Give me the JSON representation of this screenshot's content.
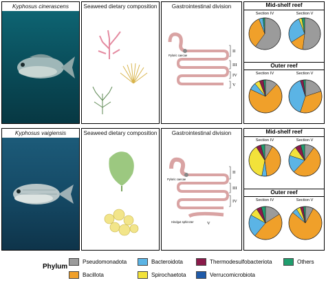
{
  "rows": [
    {
      "species": "Kyphosus cinerascens",
      "seaweed_title": "Seaweed dietary composition",
      "gi_title": "Gastrointestinal division",
      "gi_labels": [
        "Pyloric caecae"
      ],
      "sections": [
        "II",
        "III",
        "IV",
        "V"
      ],
      "reef_top": "Mid-shelf reef",
      "reef_bottom": "Outer reef",
      "pies": [
        {
          "label": "Section IV",
          "slices": [
            {
              "phylum": "Pseudomonadota",
              "value": 60
            },
            {
              "phylum": "Bacillota",
              "value": 34
            },
            {
              "phylum": "Bacteroidota",
              "value": 4
            },
            {
              "phylum": "Others",
              "value": 2
            }
          ]
        },
        {
          "label": "Section V",
          "slices": [
            {
              "phylum": "Pseudomonadota",
              "value": 52
            },
            {
              "phylum": "Bacillota",
              "value": 14
            },
            {
              "phylum": "Bacteroidota",
              "value": 28
            },
            {
              "phylum": "Spirochaetota",
              "value": 3
            },
            {
              "phylum": "Others",
              "value": 3
            }
          ]
        },
        {
          "label": "Section IV",
          "slices": [
            {
              "phylum": "Pseudomonadota",
              "value": 12
            },
            {
              "phylum": "Bacillota",
              "value": 70
            },
            {
              "phylum": "Bacteroidota",
              "value": 7
            },
            {
              "phylum": "Spirochaetota",
              "value": 5
            },
            {
              "phylum": "Thermodesulfobacteriota",
              "value": 4
            },
            {
              "phylum": "Others",
              "value": 2
            }
          ]
        },
        {
          "label": "Section V",
          "slices": [
            {
              "phylum": "Pseudomonadota",
              "value": 20
            },
            {
              "phylum": "Bacillota",
              "value": 35
            },
            {
              "phylum": "Bacteroidota",
              "value": 40
            },
            {
              "phylum": "Thermodesulfobacteriota",
              "value": 3
            },
            {
              "phylum": "Others",
              "value": 2
            }
          ]
        }
      ]
    },
    {
      "species": "Kyphosus vaigiensis",
      "seaweed_title": "Seaweed dietary composition",
      "gi_title": "Gastrointestinal division",
      "gi_labels": [
        "Pyloric caecae",
        "Hindgut sphincter"
      ],
      "sections": [
        "II",
        "III",
        "IV",
        "V"
      ],
      "reef_top": "Mid-shelf reef",
      "reef_bottom": "Outer reef",
      "pies": [
        {
          "label": "Section IV",
          "slices": [
            {
              "phylum": "Pseudomonadota",
              "value": 8
            },
            {
              "phylum": "Bacillota",
              "value": 40
            },
            {
              "phylum": "Bacteroidota",
              "value": 5
            },
            {
              "phylum": "Spirochaetota",
              "value": 38
            },
            {
              "phylum": "Thermodesulfobacteriota",
              "value": 5
            },
            {
              "phylum": "Others",
              "value": 4
            }
          ]
        },
        {
          "label": "Section V",
          "slices": [
            {
              "phylum": "Pseudomonadota",
              "value": 10
            },
            {
              "phylum": "Bacillota",
              "value": 52
            },
            {
              "phylum": "Bacteroidota",
              "value": 18
            },
            {
              "phylum": "Spirochaetota",
              "value": 10
            },
            {
              "phylum": "Thermodesulfobacteriota",
              "value": 6
            },
            {
              "phylum": "Others",
              "value": 4
            }
          ]
        },
        {
          "label": "Section IV",
          "slices": [
            {
              "phylum": "Pseudomonadota",
              "value": 16
            },
            {
              "phylum": "Bacillota",
              "value": 45
            },
            {
              "phylum": "Bacteroidota",
              "value": 22
            },
            {
              "phylum": "Spirochaetota",
              "value": 8
            },
            {
              "phylum": "Thermodesulfobacteriota",
              "value": 5
            },
            {
              "phylum": "Others",
              "value": 4
            }
          ]
        },
        {
          "label": "Section V",
          "slices": [
            {
              "phylum": "Pseudomonadota",
              "value": 8
            },
            {
              "phylum": "Bacillota",
              "value": 78
            },
            {
              "phylum": "Bacteroidota",
              "value": 5
            },
            {
              "phylum": "Spirochaetota",
              "value": 4
            },
            {
              "phylum": "Thermodesulfobacteriota",
              "value": 3
            },
            {
              "phylum": "Others",
              "value": 2
            }
          ]
        }
      ]
    }
  ],
  "legend": {
    "title": "Phylum",
    "items": [
      {
        "name": "Pseudomonadota",
        "color": "#9b9b9b"
      },
      {
        "name": "Bacillota",
        "color": "#f0a02a"
      },
      {
        "name": "Bacteroidota",
        "color": "#5bb4e5"
      },
      {
        "name": "Spirochaetota",
        "color": "#f2e23a"
      },
      {
        "name": "Thermodesulfobacteriota",
        "color": "#8a1a4a"
      },
      {
        "name": "Verrucomicrobiota",
        "color": "#1f5aa8"
      },
      {
        "name": "Others",
        "color": "#1f9e6e"
      }
    ]
  }
}
